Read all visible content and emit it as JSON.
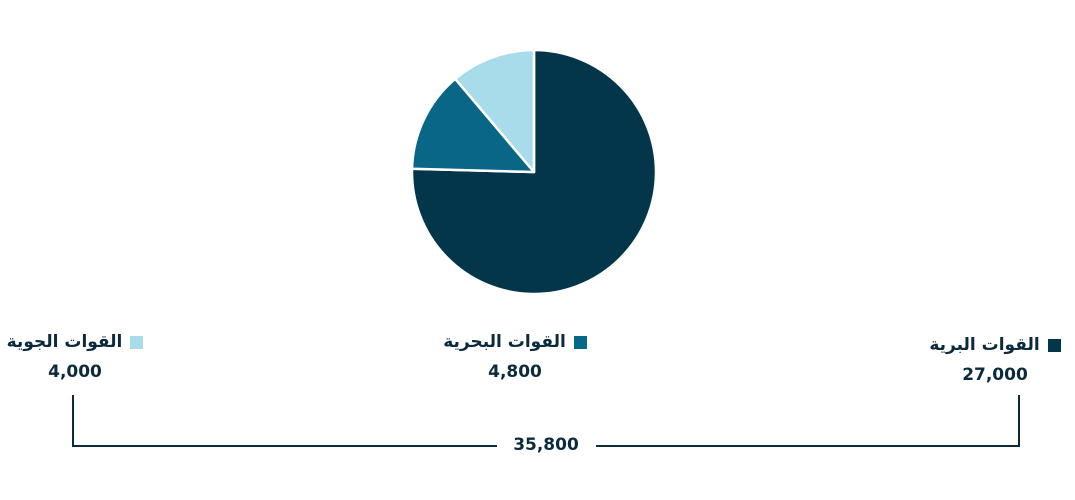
{
  "chart_data": {
    "type": "pie",
    "categories": [
      "القوات البرية",
      "القوات البحرية",
      "القوات الجوية"
    ],
    "values": [
      27000,
      4800,
      4000
    ],
    "value_labels": [
      "27,000",
      "4,800",
      "4,000"
    ],
    "colors": [
      "#04364b",
      "#086786",
      "#a8dcea"
    ],
    "total": 35800,
    "total_label": "35,800",
    "legend_placement": "bottom",
    "title": ""
  }
}
